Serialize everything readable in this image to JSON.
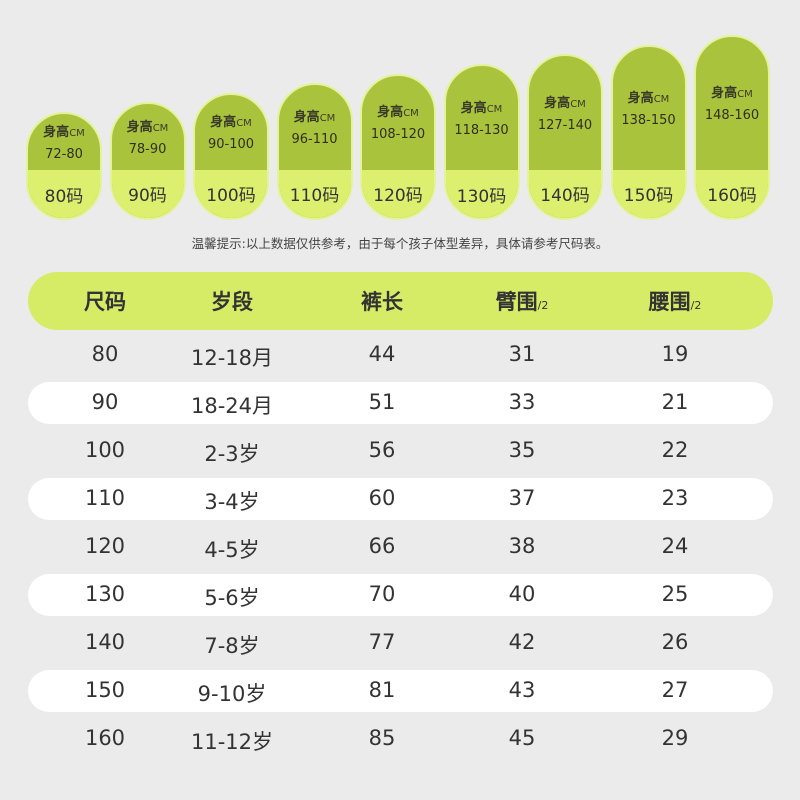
{
  "pills": [
    {
      "label": "身高",
      "unit": "CM",
      "range": "72-80",
      "size": "80码"
    },
    {
      "label": "身高",
      "unit": "CM",
      "range": "78-90",
      "size": "90码"
    },
    {
      "label": "身高",
      "unit": "CM",
      "range": "90-100",
      "size": "100码"
    },
    {
      "label": "身高",
      "unit": "CM",
      "range": "96-110",
      "size": "110码"
    },
    {
      "label": "身高",
      "unit": "CM",
      "range": "108-120",
      "size": "120码"
    },
    {
      "label": "身高",
      "unit": "CM",
      "range": "118-130",
      "size": "130码"
    },
    {
      "label": "身高",
      "unit": "CM",
      "range": "127-140",
      "size": "140码"
    },
    {
      "label": "身高",
      "unit": "CM",
      "range": "138-150",
      "size": "150码"
    },
    {
      "label": "身高",
      "unit": "CM",
      "range": "148-160",
      "size": "160码"
    }
  ],
  "note": "温馨提示:以上数据仅供参考，由于每个孩子体型差异，具体请参考尺码表。",
  "table": {
    "header": [
      {
        "text": "尺码"
      },
      {
        "text": "岁段"
      },
      {
        "text": "裤长"
      },
      {
        "text": "臂围",
        "sub": "/2"
      },
      {
        "text": "腰围",
        "sub": "/2"
      }
    ],
    "rows": [
      [
        "80",
        "12-18月",
        "44",
        "31",
        "19"
      ],
      [
        "90",
        "18-24月",
        "51",
        "33",
        "21"
      ],
      [
        "100",
        "2-3岁",
        "56",
        "35",
        "22"
      ],
      [
        "110",
        "3-4岁",
        "60",
        "37",
        "23"
      ],
      [
        "120",
        "4-5岁",
        "66",
        "38",
        "24"
      ],
      [
        "130",
        "5-6岁",
        "70",
        "40",
        "25"
      ],
      [
        "140",
        "7-8岁",
        "77",
        "42",
        "26"
      ],
      [
        "150",
        "9-10岁",
        "81",
        "43",
        "27"
      ],
      [
        "160",
        "11-12岁",
        "85",
        "45",
        "29"
      ]
    ]
  }
}
